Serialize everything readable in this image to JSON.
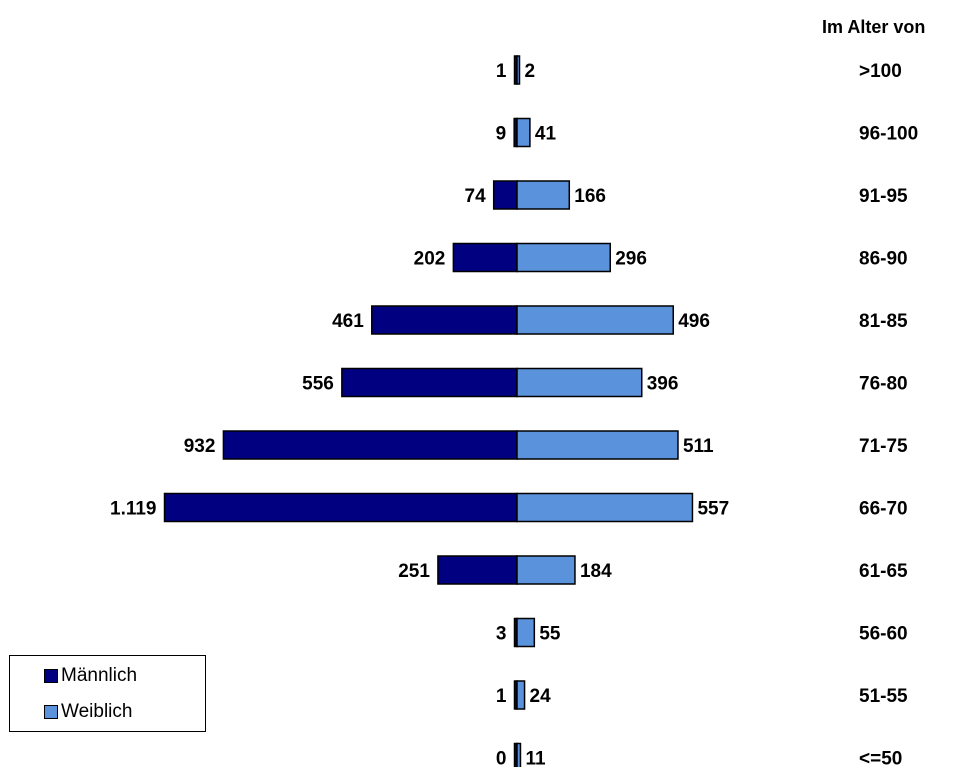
{
  "header": {
    "age_label": "Im Alter von"
  },
  "colors": {
    "male": "#000080",
    "female": "#5b92dc",
    "stroke": "#000000"
  },
  "legend": {
    "male_label": "Männlich",
    "female_label": "Weiblich"
  },
  "chart_data": {
    "type": "bar",
    "orientation": "horizontal-diverging",
    "title": "",
    "categories_title": "Im Alter von",
    "categories": [
      ">100",
      "96-100",
      "91-95",
      "86-90",
      "81-85",
      "76-80",
      "71-75",
      "66-70",
      "61-65",
      "56-60",
      "51-55",
      "<=50"
    ],
    "series": [
      {
        "name": "Männlich",
        "direction": "left",
        "values": [
          1,
          9,
          74,
          202,
          461,
          556,
          932,
          1119,
          251,
          3,
          1,
          0
        ],
        "labels": [
          "1",
          "9",
          "74",
          "202",
          "461",
          "556",
          "932",
          "1.119",
          "251",
          "3",
          "1",
          "0"
        ]
      },
      {
        "name": "Weiblich",
        "direction": "right",
        "values": [
          2,
          41,
          166,
          296,
          496,
          396,
          511,
          557,
          184,
          55,
          24,
          11
        ],
        "labels": [
          "2",
          "41",
          "166",
          "296",
          "496",
          "396",
          "511",
          "557",
          "184",
          "55",
          "24",
          "11"
        ]
      }
    ],
    "legend_position": "bottom-left",
    "grid": false
  }
}
